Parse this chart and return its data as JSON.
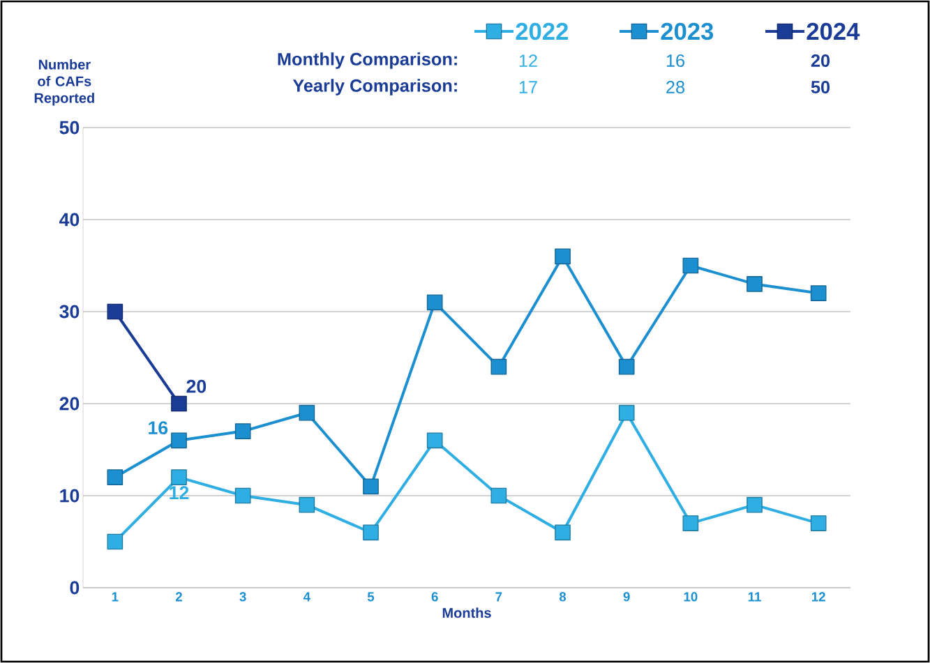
{
  "chart_data": {
    "type": "line",
    "xlabel": "Months",
    "ylabel": "Number of CAFs Reported",
    "categories": [
      "1",
      "2",
      "3",
      "4",
      "5",
      "6",
      "7",
      "8",
      "9",
      "10",
      "11",
      "12"
    ],
    "series": [
      {
        "name": "2022",
        "color": "#2eaee3",
        "values": [
          5,
          12,
          10,
          9,
          6,
          16,
          10,
          6,
          19,
          7,
          9,
          7
        ],
        "value_labels": [
          null,
          "12",
          null,
          null,
          null,
          null,
          null,
          null,
          null,
          null,
          null,
          null
        ]
      },
      {
        "name": "2023",
        "color": "#1b8fd0",
        "values": [
          12,
          16,
          17,
          19,
          11,
          31,
          24,
          36,
          24,
          35,
          33,
          32
        ],
        "value_labels": [
          null,
          "16",
          null,
          null,
          null,
          null,
          null,
          null,
          null,
          null,
          null,
          null
        ]
      },
      {
        "name": "2024",
        "color": "#1a3c96",
        "values": [
          30,
          20,
          null,
          null,
          null,
          null,
          null,
          null,
          null,
          null,
          null,
          null
        ],
        "value_labels": [
          null,
          "20",
          null,
          null,
          null,
          null,
          null,
          null,
          null,
          null,
          null,
          null
        ]
      }
    ],
    "ylim": [
      0,
      50
    ],
    "yticks": [
      0,
      10,
      20,
      30,
      40,
      50
    ],
    "grid": "y",
    "legend": "top right",
    "marker": "square",
    "line_style": "solid",
    "annotations": [
      "Monthly Comparison:",
      "12",
      "16",
      "20",
      "Yearly Comparison:",
      "17",
      "28",
      "50"
    ]
  }
}
